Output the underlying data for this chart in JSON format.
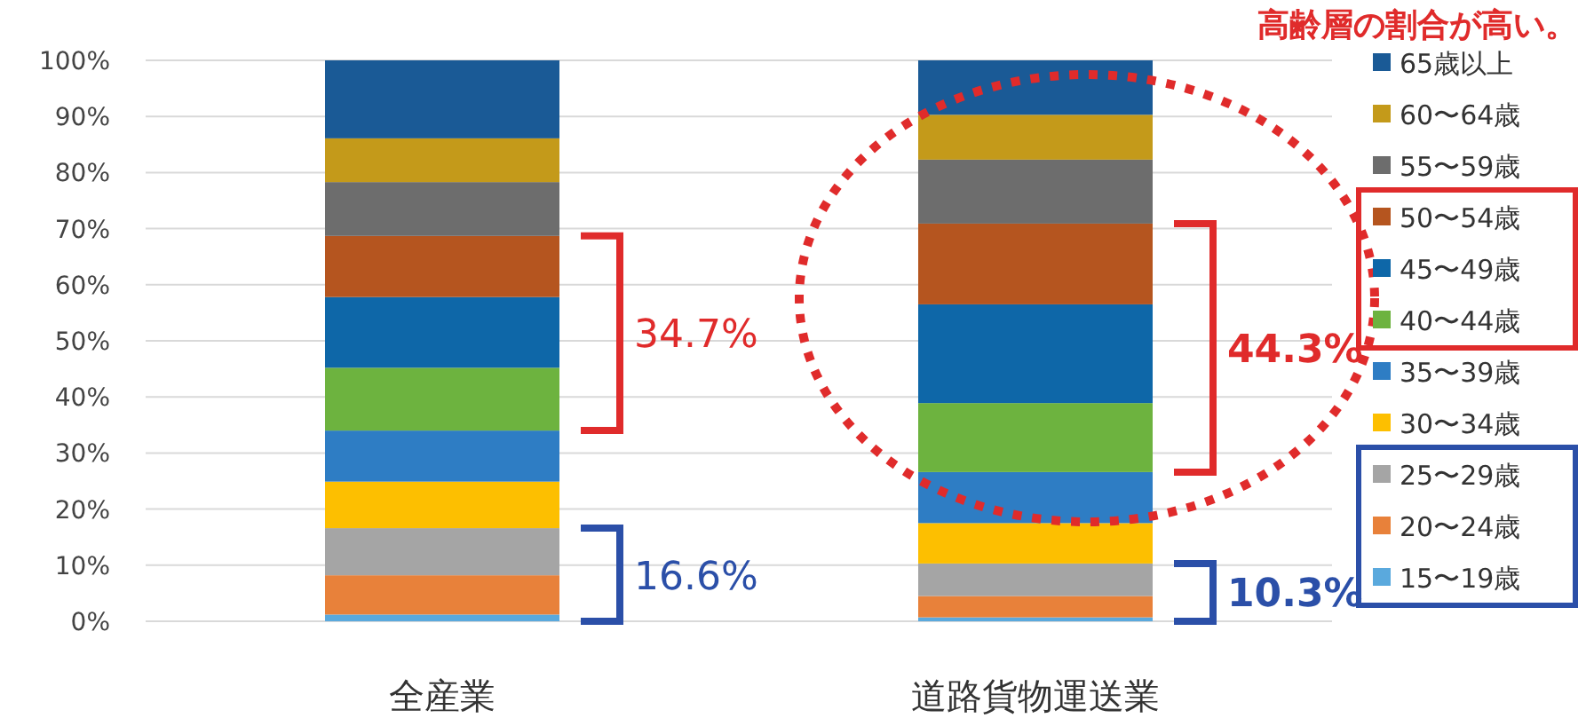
{
  "chart_data": {
    "type": "bar",
    "stacked": true,
    "title": "高齢層の割合が高い。",
    "categories": [
      "全産業",
      "道路貨物運送業"
    ],
    "series": [
      {
        "name": "15〜19歳",
        "color": "#5aa9dd",
        "values": [
          1.2,
          0.7
        ]
      },
      {
        "name": "20〜24歳",
        "color": "#e8813a",
        "values": [
          7.0,
          3.8
        ]
      },
      {
        "name": "25〜29歳",
        "color": "#a5a5a5",
        "values": [
          8.4,
          5.8
        ]
      },
      {
        "name": "30〜34歳",
        "color": "#fdbf00",
        "values": [
          8.3,
          7.2
        ]
      },
      {
        "name": "35〜39歳",
        "color": "#2e7dc4",
        "values": [
          9.1,
          9.1
        ]
      },
      {
        "name": "40〜44歳",
        "color": "#6db33f",
        "values": [
          11.2,
          12.3
        ]
      },
      {
        "name": "45〜49歳",
        "color": "#0e67a8",
        "values": [
          12.6,
          17.6
        ]
      },
      {
        "name": "50〜54歳",
        "color": "#b5551f",
        "values": [
          10.9,
          14.4
        ]
      },
      {
        "name": "55〜59歳",
        "color": "#6d6d6d",
        "values": [
          9.6,
          11.4
        ]
      },
      {
        "name": "60〜64歳",
        "color": "#c49a1a",
        "values": [
          7.8,
          8.0
        ]
      },
      {
        "name": "65歳以上",
        "color": "#1a5a96",
        "values": [
          13.9,
          9.7
        ]
      }
    ],
    "ylim": [
      0,
      100
    ],
    "yticks": [
      {
        "value": 0,
        "label": "0%"
      },
      {
        "value": 10,
        "label": "10%"
      },
      {
        "value": 20,
        "label": "20%"
      },
      {
        "value": 30,
        "label": "30%"
      },
      {
        "value": 40,
        "label": "40%"
      },
      {
        "value": 50,
        "label": "50%"
      },
      {
        "value": 60,
        "label": "60%"
      },
      {
        "value": 70,
        "label": "70%"
      },
      {
        "value": 80,
        "label": "80%"
      },
      {
        "value": 90,
        "label": "90%"
      },
      {
        "value": 100,
        "label": "100%"
      }
    ],
    "grid": "y",
    "legend": "right",
    "annotations": [
      "16.6%",
      "34.7%",
      "10.3%",
      "44.3%"
    ]
  }
}
